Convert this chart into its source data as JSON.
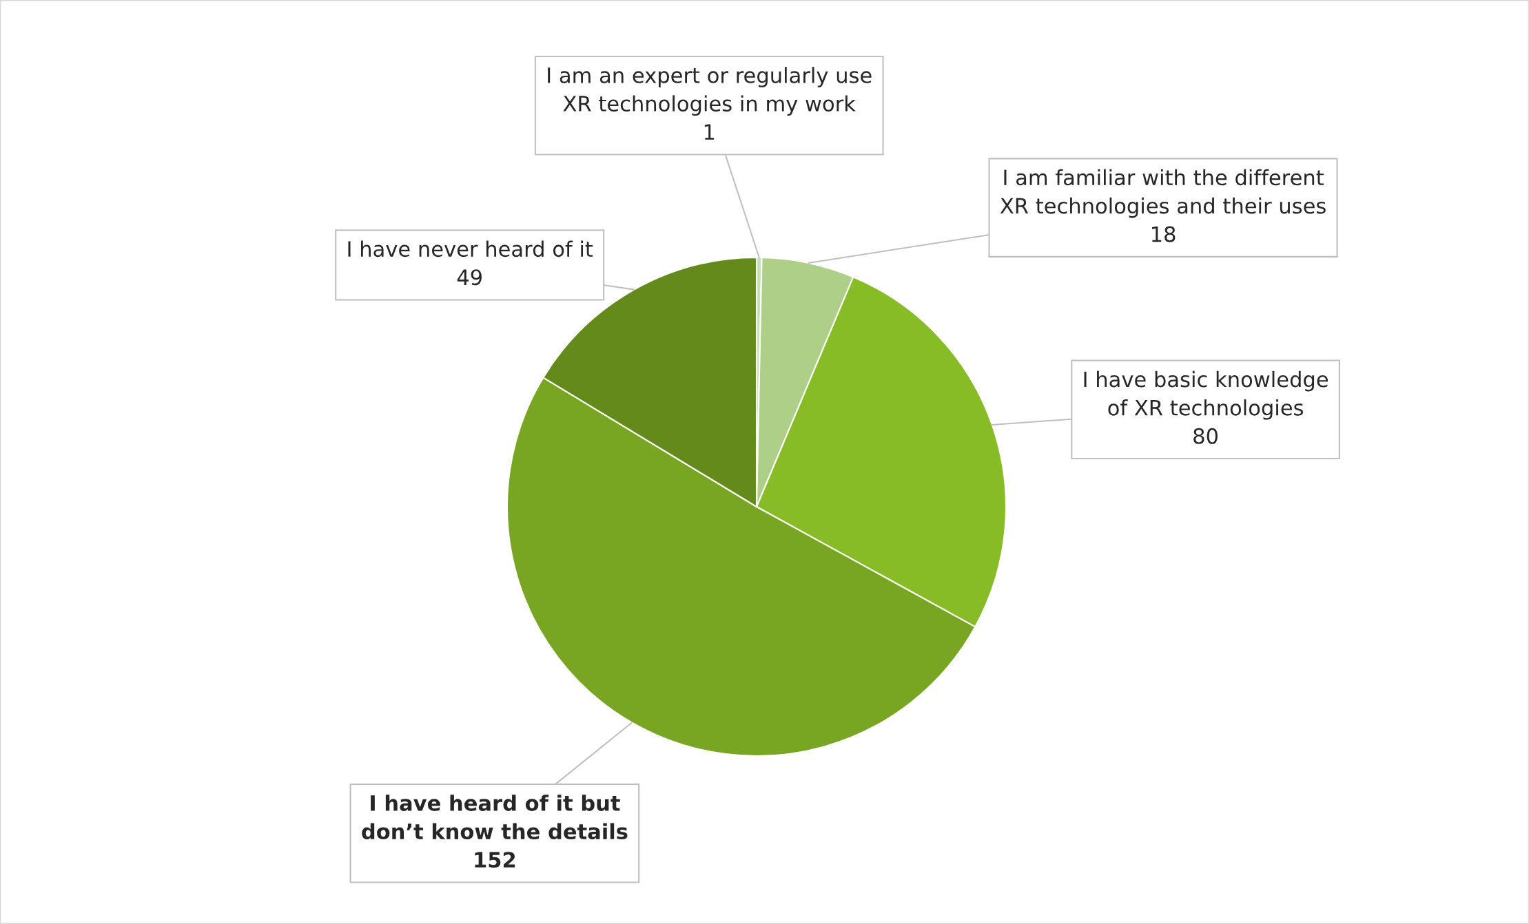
{
  "chart_data": {
    "type": "pie",
    "categories": [
      "I am an expert or regularly use\nXR technologies in my work",
      "I am familiar with the different\nXR technologies and their uses",
      "I have basic knowledge\nof XR technologies",
      "I have heard of it but\ndon’t know the details",
      "I have never heard of it"
    ],
    "values": [
      1,
      18,
      80,
      152,
      49
    ],
    "colors": [
      "#c5e0b4",
      "#aecf88",
      "#87bc27",
      "#78a522",
      "#648a1b"
    ],
    "data_labels": true
  }
}
